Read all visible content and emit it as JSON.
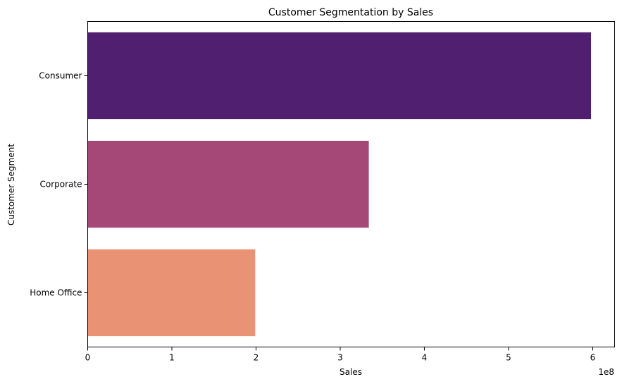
{
  "chart_data": {
    "type": "bar",
    "orientation": "horizontal",
    "title": "Customer Segmentation by Sales",
    "xlabel": "Sales",
    "ylabel": "Customer Segment",
    "scale_label": "1e8",
    "categories": [
      "Consumer",
      "Corporate",
      "Home Office"
    ],
    "values": [
      598000000,
      334000000,
      199000000
    ],
    "colors": [
      "#511F6F",
      "#A64877",
      "#E99374"
    ],
    "xlim": [
      0,
      626000000
    ],
    "xticks": [
      {
        "value": 0,
        "label": "0"
      },
      {
        "value": 100000000,
        "label": "1"
      },
      {
        "value": 200000000,
        "label": "2"
      },
      {
        "value": 300000000,
        "label": "3"
      },
      {
        "value": 400000000,
        "label": "4"
      },
      {
        "value": 500000000,
        "label": "5"
      },
      {
        "value": 600000000,
        "label": "6"
      }
    ],
    "grid": false,
    "legend": "none"
  }
}
